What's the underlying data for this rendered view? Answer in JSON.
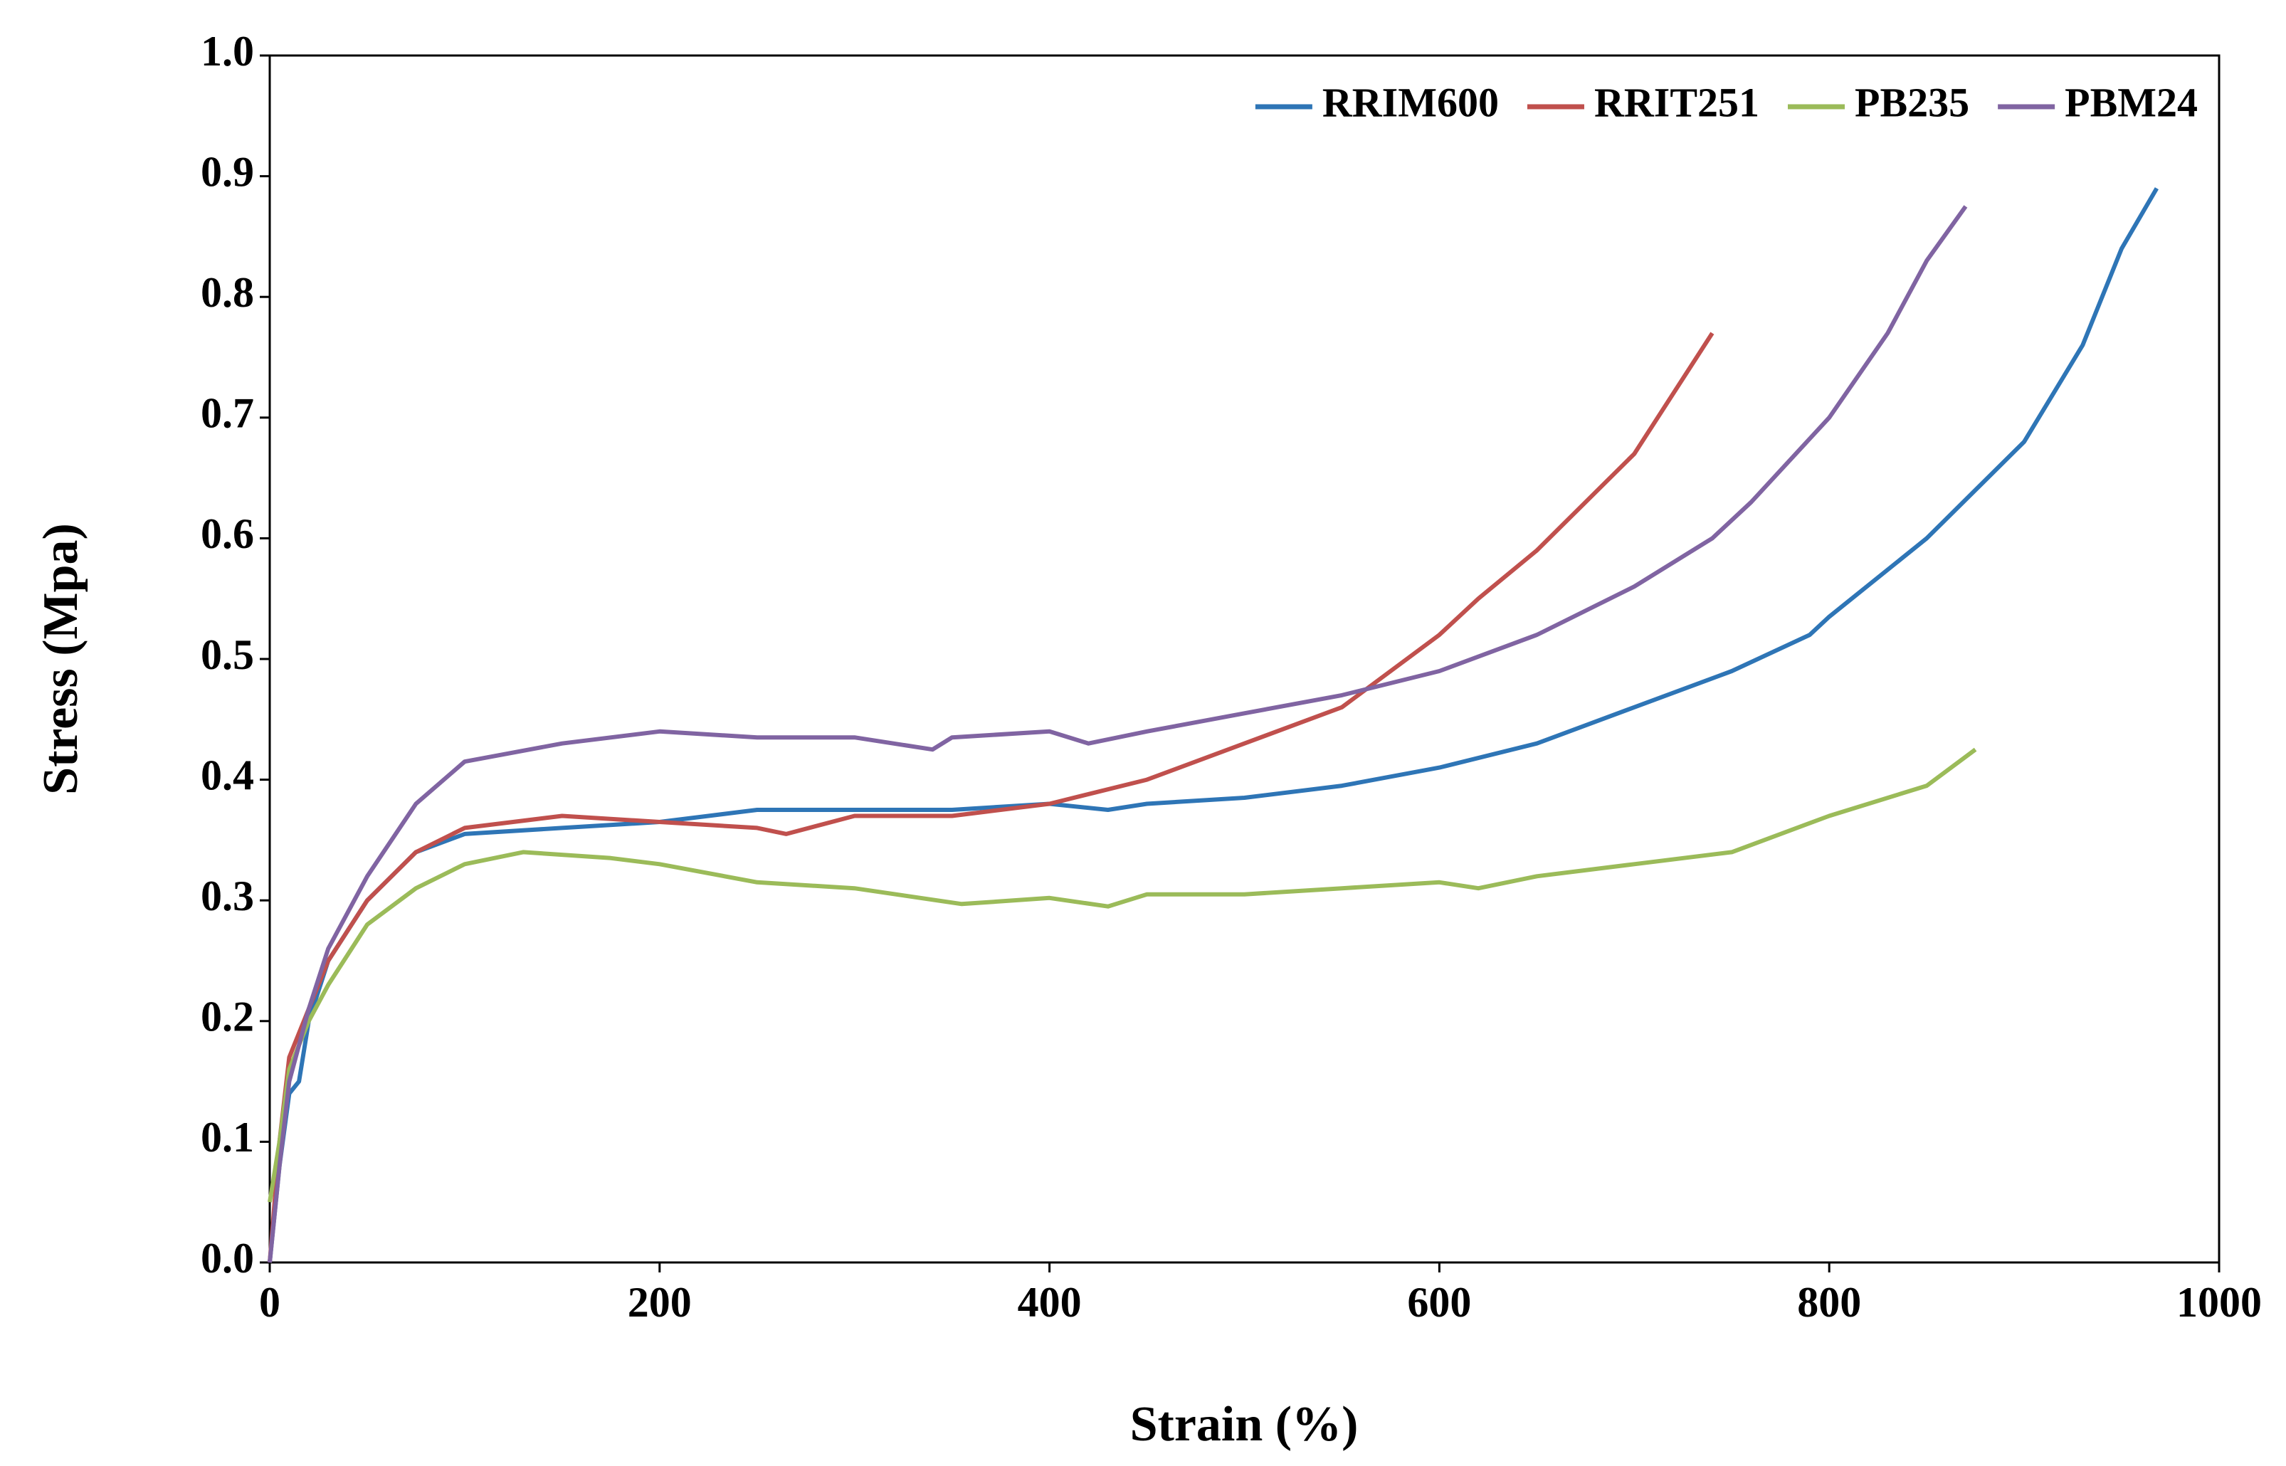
{
  "chart_data": {
    "type": "line",
    "x_label": "Strain (%)",
    "y_label": "Stress (Mpa)",
    "xlim": [
      0,
      1000
    ],
    "ylim": [
      0,
      1
    ],
    "xticks": [
      0,
      200,
      400,
      600,
      800,
      1000
    ],
    "yticks": [
      {
        "value": 0,
        "label": "0.0"
      },
      0.1,
      0.2,
      0.3,
      0.4,
      0.5,
      0.6,
      0.7,
      0.8,
      0.9,
      {
        "value": 1,
        "label": "1.0"
      }
    ],
    "grid": false,
    "legend": "top-right",
    "series": [
      {
        "name": "RRIM600",
        "color": "#2e75b6",
        "x": [
          0,
          5,
          10,
          15,
          20,
          30,
          50,
          75,
          100,
          150,
          200,
          250,
          300,
          350,
          400,
          430,
          450,
          500,
          550,
          600,
          650,
          700,
          750,
          790,
          800,
          850,
          900,
          930,
          950,
          968
        ],
        "values": [
          0,
          0.08,
          0.14,
          0.15,
          0.2,
          0.25,
          0.3,
          0.34,
          0.355,
          0.36,
          0.365,
          0.375,
          0.375,
          0.375,
          0.38,
          0.375,
          0.38,
          0.385,
          0.395,
          0.41,
          0.43,
          0.46,
          0.49,
          0.52,
          0.535,
          0.6,
          0.68,
          0.76,
          0.84,
          0.89
        ]
      },
      {
        "name": "RRIT251",
        "color": "#c0504d",
        "x": [
          0,
          5,
          10,
          20,
          30,
          50,
          75,
          100,
          150,
          200,
          250,
          265,
          300,
          350,
          400,
          450,
          500,
          550,
          600,
          620,
          650,
          700,
          720,
          740
        ],
        "values": [
          0,
          0.1,
          0.17,
          0.21,
          0.25,
          0.3,
          0.34,
          0.36,
          0.37,
          0.365,
          0.36,
          0.355,
          0.37,
          0.37,
          0.38,
          0.4,
          0.43,
          0.46,
          0.52,
          0.55,
          0.59,
          0.67,
          0.72,
          0.77
        ]
      },
      {
        "name": "PB235",
        "color": "#9bbb59",
        "x": [
          0,
          5,
          10,
          20,
          30,
          50,
          75,
          100,
          130,
          175,
          200,
          250,
          300,
          355,
          400,
          430,
          450,
          500,
          550,
          600,
          620,
          650,
          700,
          750,
          800,
          850,
          875
        ],
        "values": [
          0.05,
          0.1,
          0.16,
          0.2,
          0.23,
          0.28,
          0.31,
          0.33,
          0.34,
          0.335,
          0.33,
          0.315,
          0.31,
          0.297,
          0.302,
          0.295,
          0.305,
          0.305,
          0.31,
          0.315,
          0.31,
          0.32,
          0.33,
          0.34,
          0.37,
          0.395,
          0.425
        ]
      },
      {
        "name": "PBM24",
        "color": "#8064a2",
        "x": [
          0,
          5,
          10,
          20,
          30,
          50,
          75,
          100,
          150,
          200,
          250,
          300,
          340,
          350,
          400,
          420,
          450,
          500,
          550,
          600,
          650,
          700,
          740,
          760,
          800,
          830,
          850,
          870
        ],
        "values": [
          0,
          0.08,
          0.15,
          0.21,
          0.26,
          0.32,
          0.38,
          0.415,
          0.43,
          0.44,
          0.435,
          0.435,
          0.425,
          0.435,
          0.44,
          0.43,
          0.44,
          0.455,
          0.47,
          0.49,
          0.52,
          0.56,
          0.6,
          0.63,
          0.7,
          0.77,
          0.83,
          0.875
        ]
      }
    ]
  }
}
